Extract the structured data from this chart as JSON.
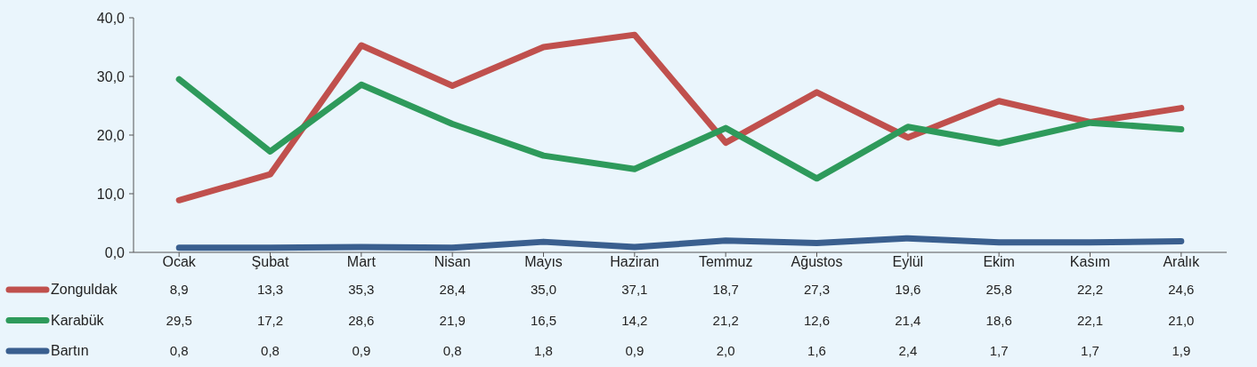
{
  "chart_data": {
    "type": "line",
    "categories": [
      "Ocak",
      "Şubat",
      "Mart",
      "Nisan",
      "Mayıs",
      "Haziran",
      "Temmuz",
      "Ağustos",
      "Eylül",
      "Ekim",
      "Kasım",
      "Aralık"
    ],
    "ylim": [
      0,
      40
    ],
    "yticks": [
      {
        "value": 0,
        "label": "0,0"
      },
      {
        "value": 10,
        "label": "10,0"
      },
      {
        "value": 20,
        "label": "20,0"
      },
      {
        "value": 30,
        "label": "30,0"
      },
      {
        "value": 40,
        "label": "40,0"
      }
    ],
    "grid": false,
    "legend": "bottom",
    "marker": "none",
    "line_style": "solid",
    "series": [
      {
        "name": "Zonguldak",
        "color": "#c0504d",
        "values": [
          8.9,
          13.3,
          35.3,
          28.4,
          35.0,
          37.1,
          18.7,
          27.3,
          19.6,
          25.8,
          22.2,
          24.6
        ],
        "value_labels": [
          "8,9",
          "13,3",
          "35,3",
          "28,4",
          "35,0",
          "37,1",
          "18,7",
          "27,3",
          "19,6",
          "25,8",
          "22,2",
          "24,6"
        ]
      },
      {
        "name": "Karabük",
        "color": "#2e9a5b",
        "values": [
          29.5,
          17.2,
          28.6,
          21.9,
          16.5,
          14.2,
          21.2,
          12.6,
          21.4,
          18.6,
          22.1,
          21.0
        ],
        "value_labels": [
          "29,5",
          "17,2",
          "28,6",
          "21,9",
          "16,5",
          "14,2",
          "21,2",
          "12,6",
          "21,4",
          "18,6",
          "22,1",
          "21,0"
        ]
      },
      {
        "name": "Bartın",
        "color": "#3a5f8f",
        "values": [
          0.8,
          0.8,
          0.9,
          0.8,
          1.8,
          0.9,
          2.0,
          1.6,
          2.4,
          1.7,
          1.7,
          1.9
        ],
        "value_labels": [
          "0,8",
          "0,8",
          "0,9",
          "0,8",
          "1,8",
          "0,9",
          "2,0",
          "1,6",
          "2,4",
          "1,7",
          "1,7",
          "1,9"
        ]
      }
    ]
  }
}
